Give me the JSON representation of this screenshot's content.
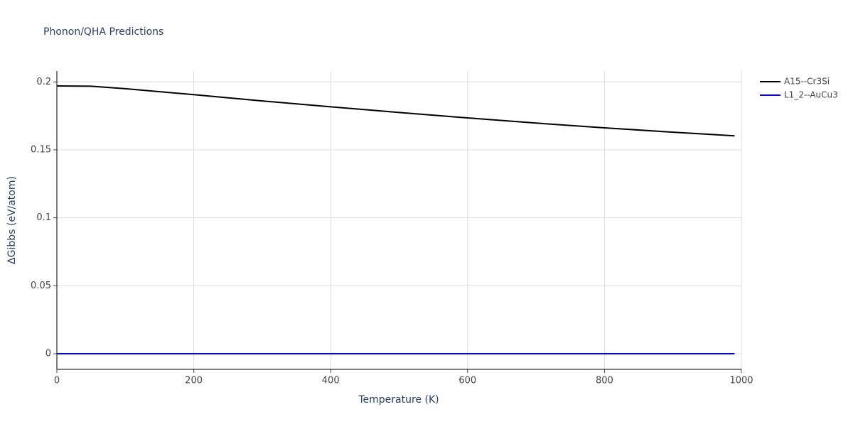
{
  "chart_data": {
    "type": "line",
    "title": "Phonon/QHA Predictions",
    "x_label": "Temperature (K)",
    "y_label": "ΔGibbs (eV/atom)",
    "x": [
      0,
      50,
      100,
      200,
      300,
      400,
      500,
      600,
      700,
      800,
      900,
      990
    ],
    "series": [
      {
        "name": "A15--Cr3Si",
        "color": "#000000",
        "values": [
          0.197,
          0.1968,
          0.195,
          0.1906,
          0.186,
          0.1817,
          0.1775,
          0.1735,
          0.1697,
          0.1662,
          0.163,
          0.1603
        ]
      },
      {
        "name": "L1_2--AuCu3",
        "color": "#0000ff",
        "values": [
          0,
          0,
          0,
          0,
          0,
          0,
          0,
          0,
          0,
          0,
          0,
          0
        ]
      }
    ],
    "xlim": [
      0,
      1000
    ],
    "xticks": [
      0,
      200,
      400,
      600,
      800,
      1000
    ],
    "ylim": [
      -0.0115,
      0.208
    ],
    "yticks": [
      0,
      0.05,
      0.1,
      0.15,
      0.2
    ],
    "grid": true,
    "legend": "outside-right"
  }
}
